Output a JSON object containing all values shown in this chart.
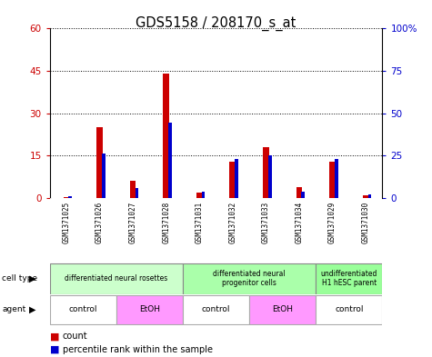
{
  "title": "GDS5158 / 208170_s_at",
  "samples": [
    "GSM1371025",
    "GSM1371026",
    "GSM1371027",
    "GSM1371028",
    "GSM1371031",
    "GSM1371032",
    "GSM1371033",
    "GSM1371034",
    "GSM1371029",
    "GSM1371030"
  ],
  "counts": [
    0.5,
    25,
    6,
    44,
    2,
    13,
    18,
    4,
    13,
    1
  ],
  "percentiles": [
    1.0,
    26.5,
    6.0,
    44.5,
    4.0,
    23.0,
    25.0,
    4.0,
    23.0,
    2.0
  ],
  "ylim_left": [
    0,
    60
  ],
  "ylim_right": [
    0,
    100
  ],
  "yticks_left": [
    0,
    15,
    30,
    45,
    60
  ],
  "yticks_right": [
    0,
    25,
    50,
    75,
    100
  ],
  "ytick_labels_left": [
    "0",
    "15",
    "30",
    "45",
    "60"
  ],
  "ytick_labels_right": [
    "0",
    "25",
    "50",
    "75",
    "100%"
  ],
  "bar_color_count": "#cc0000",
  "bar_color_percentile": "#0000cc",
  "cell_type_groups": [
    {
      "label": "differentiated neural rosettes",
      "start": 0,
      "end": 3,
      "color": "#ccffcc"
    },
    {
      "label": "differentiated neural\nprogenitor cells",
      "start": 4,
      "end": 7,
      "color": "#aaffaa"
    },
    {
      "label": "undifferentiated\nH1 hESC parent",
      "start": 8,
      "end": 9,
      "color": "#99ff99"
    }
  ],
  "agent_groups": [
    {
      "label": "control",
      "start": 0,
      "end": 1,
      "color": "#ffffff"
    },
    {
      "label": "EtOH",
      "start": 2,
      "end": 3,
      "color": "#ff99ff"
    },
    {
      "label": "control",
      "start": 4,
      "end": 5,
      "color": "#ffffff"
    },
    {
      "label": "EtOH",
      "start": 6,
      "end": 7,
      "color": "#ff99ff"
    },
    {
      "label": "control",
      "start": 8,
      "end": 9,
      "color": "#ffffff"
    }
  ],
  "sample_box_color": "#c0c0c0",
  "plot_bg": "#ffffff"
}
